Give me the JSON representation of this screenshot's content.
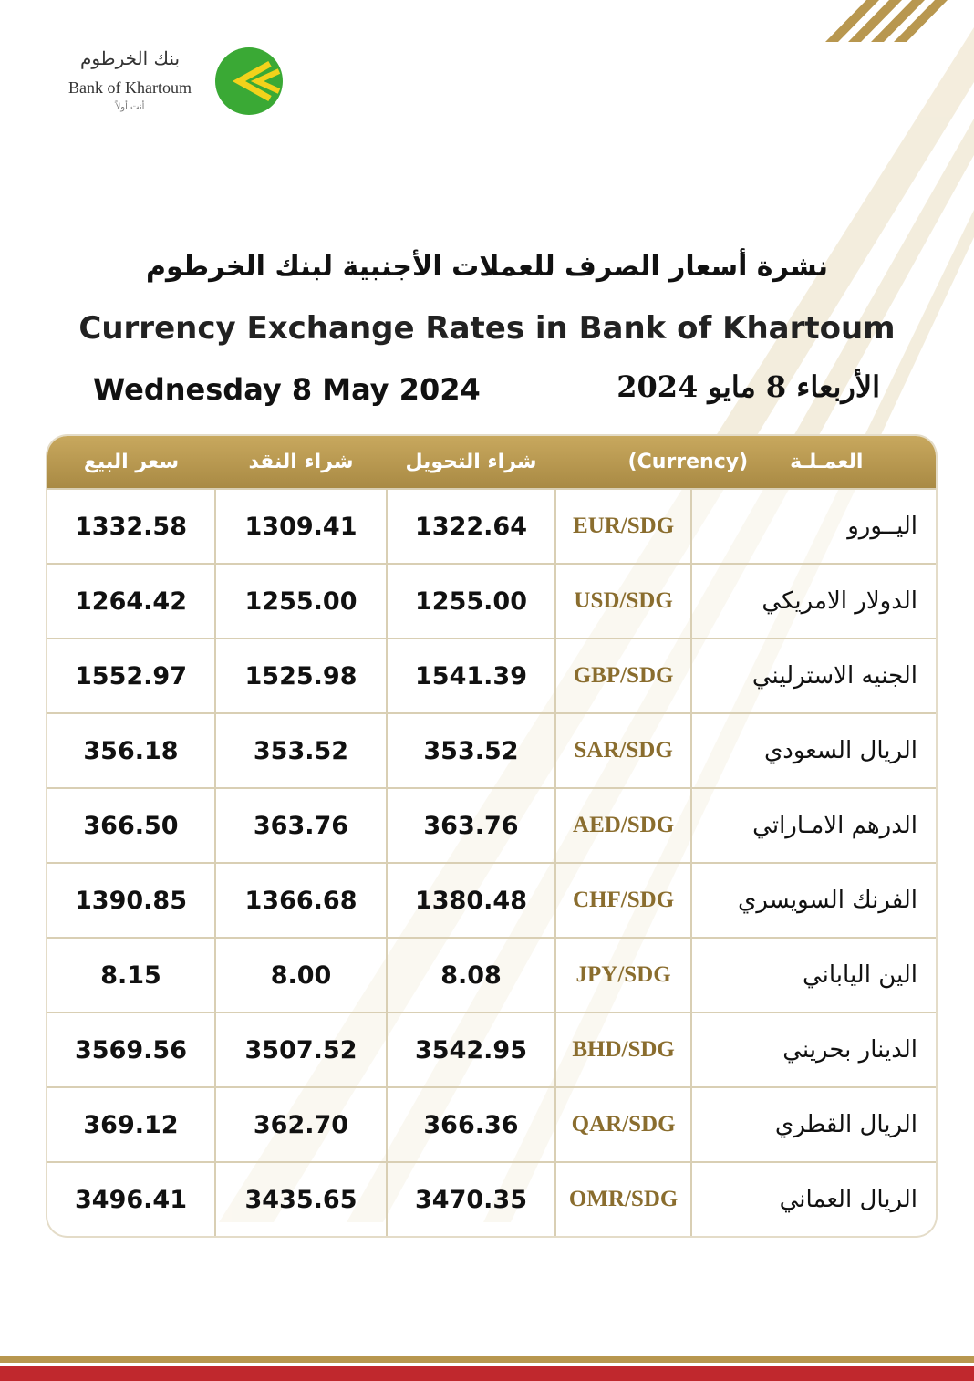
{
  "logo": {
    "name_ar": "بنك الخرطوم",
    "name_en": "Bank of Khartoum",
    "tagline": "أنت أولاً"
  },
  "header": {
    "title_ar": "نشرة أسعار الصرف للعملات الأجنبية لبنك الخرطوم",
    "title_en": "Currency Exchange Rates in Bank of Khartoum",
    "date_en": "Wednesday 8 May 2024",
    "date_ar": "الأربعاء 8 مايو 2024"
  },
  "table": {
    "columns": {
      "currency_ar": "العمـلـة",
      "currency_en": "(Currency)",
      "transfer_buy": "شراء التحويل",
      "cash_buy": "شراء النقد",
      "sell": "سعر البيع"
    },
    "rows": [
      {
        "name": "اليــورو",
        "code": "EUR/SDG",
        "transfer_buy": "1322.64",
        "cash_buy": "1309.41",
        "sell": "1332.58"
      },
      {
        "name": "الدولار الامريكي",
        "code": "USD/SDG",
        "transfer_buy": "1255.00",
        "cash_buy": "1255.00",
        "sell": "1264.42"
      },
      {
        "name": "الجنيه الاسترليني",
        "code": "GBP/SDG",
        "transfer_buy": "1541.39",
        "cash_buy": "1525.98",
        "sell": "1552.97"
      },
      {
        "name": "الريال السعودي",
        "code": "SAR/SDG",
        "transfer_buy": "353.52",
        "cash_buy": "353.52",
        "sell": "356.18"
      },
      {
        "name": "الدرهم الامـاراتي",
        "code": "AED/SDG",
        "transfer_buy": "363.76",
        "cash_buy": "363.76",
        "sell": "366.50"
      },
      {
        "name": "الفرنك السويسري",
        "code": "CHF/SDG",
        "transfer_buy": "1380.48",
        "cash_buy": "1366.68",
        "sell": "1390.85"
      },
      {
        "name": "الين الياباني",
        "code": "JPY/SDG",
        "transfer_buy": "8.08",
        "cash_buy": "8.00",
        "sell": "8.15"
      },
      {
        "name": "الدينار بحريني",
        "code": "BHD/SDG",
        "transfer_buy": "3542.95",
        "cash_buy": "3507.52",
        "sell": "3569.56"
      },
      {
        "name": "الريال القطري",
        "code": "QAR/SDG",
        "transfer_buy": "366.36",
        "cash_buy": "362.70",
        "sell": "369.12"
      },
      {
        "name": "الريال العماني",
        "code": "OMR/SDG",
        "transfer_buy": "3470.35",
        "cash_buy": "3435.65",
        "sell": "3496.41"
      }
    ]
  }
}
